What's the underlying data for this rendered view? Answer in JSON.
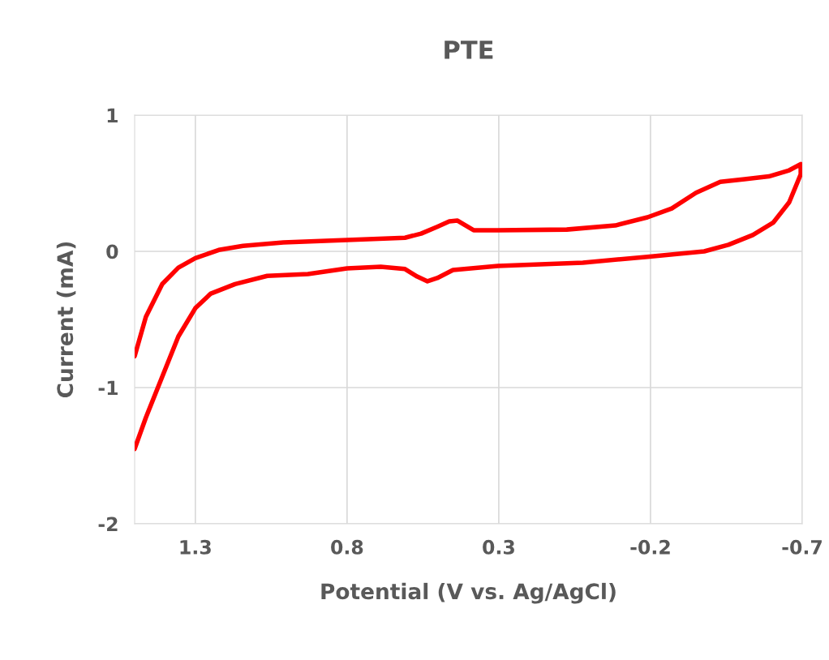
{
  "chart_data": {
    "type": "line",
    "title": "PTE",
    "xlabel": "Potential (V vs. Ag/AgCl)",
    "ylabel": "Current (mA)",
    "xlim": [
      1.5,
      -0.7
    ],
    "xticks": [
      1.3,
      0.8,
      0.3,
      -0.2,
      -0.7
    ],
    "ylim": [
      -2,
      1
    ],
    "yticks": [
      -2,
      -1,
      0,
      1
    ],
    "grid": true,
    "marker": "none",
    "line_style": "solid",
    "series": [
      {
        "color": "#ff0000",
        "x": [
          1.5,
          1.463,
          1.409,
          1.356,
          1.3,
          1.223,
          1.143,
          1.01,
          0.8,
          0.609,
          0.556,
          0.503,
          0.463,
          0.436,
          0.417,
          0.383,
          0.303,
          0.076,
          -0.084,
          -0.19,
          -0.27,
          -0.35,
          -0.43,
          -0.51,
          -0.59,
          -0.657,
          -0.695,
          -0.695,
          -0.657,
          -0.604,
          -0.537,
          -0.457,
          -0.377,
          -0.19,
          0.023,
          0.303,
          0.451,
          0.503,
          0.535,
          0.569,
          0.609,
          0.689,
          0.8,
          0.929,
          1.063,
          1.169,
          1.249,
          1.3,
          1.356,
          1.409,
          1.463,
          1.5
        ],
        "values": [
          -0.77,
          -0.48,
          -0.24,
          -0.12,
          -0.05,
          0.01,
          0.04,
          0.065,
          0.083,
          0.1,
          0.13,
          0.18,
          0.22,
          0.226,
          0.2,
          0.155,
          0.155,
          0.16,
          0.19,
          0.25,
          0.315,
          0.43,
          0.51,
          0.53,
          0.55,
          0.595,
          0.64,
          0.565,
          0.36,
          0.21,
          0.12,
          0.048,
          0.0,
          -0.04,
          -0.083,
          -0.107,
          -0.137,
          -0.196,
          -0.22,
          -0.185,
          -0.13,
          -0.113,
          -0.125,
          -0.167,
          -0.18,
          -0.24,
          -0.31,
          -0.417,
          -0.625,
          -0.92,
          -1.22,
          -1.45
        ]
      }
    ]
  }
}
